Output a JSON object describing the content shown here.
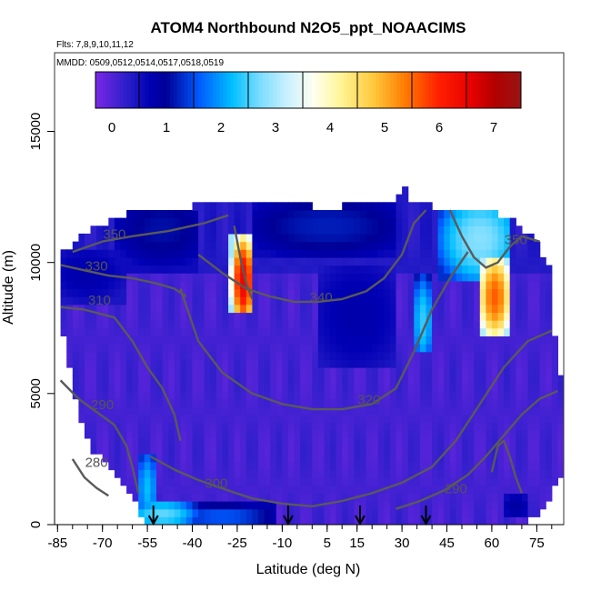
{
  "chart_data": {
    "type": "heatmap",
    "title": "ATOM4 Northbound N2O5_ppt_NOAACIMS",
    "flights_note": "Flts: 7,8,9,10,11,12",
    "dates_note": "MMDD: 0509,0512,0514,0517,0518,0519",
    "xlabel": "Latitude (deg N)",
    "ylabel": "Altitude (m)",
    "xlim": [
      -86,
      84
    ],
    "ylim": [
      0,
      18000
    ],
    "x_ticks": [
      -85,
      -70,
      -55,
      -40,
      -25,
      -10,
      5,
      15,
      30,
      45,
      60,
      75
    ],
    "x_tick_labels": [
      "-85",
      "-70",
      "-55",
      "-40",
      "-25",
      "-10",
      "5",
      "15",
      "30",
      "45",
      "60",
      "75"
    ],
    "y_ticks": [
      0,
      5000,
      10000,
      15000
    ],
    "y_tick_labels": [
      "0",
      "5000",
      "10000",
      "15000"
    ],
    "colorbar": {
      "range": [
        -0.3,
        7.5
      ],
      "ticks": [
        0,
        1,
        2,
        3,
        4,
        5,
        6,
        7
      ],
      "tick_labels": [
        "0",
        "1",
        "2",
        "3",
        "4",
        "5",
        "6",
        "7"
      ]
    },
    "ceiling_profile": [
      [
        -84,
        10200
      ],
      [
        -80,
        10500
      ],
      [
        -76,
        11000
      ],
      [
        -72,
        11200
      ],
      [
        -66,
        11600
      ],
      [
        -60,
        11800
      ],
      [
        -50,
        12000
      ],
      [
        -40,
        12000
      ],
      [
        -30,
        12200
      ],
      [
        -20,
        12300
      ],
      [
        -10,
        12200
      ],
      [
        0,
        12000
      ],
      [
        10,
        12000
      ],
      [
        20,
        12100
      ],
      [
        28,
        12200
      ],
      [
        30,
        12900
      ],
      [
        33,
        12200
      ],
      [
        40,
        12000
      ],
      [
        50,
        12000
      ],
      [
        60,
        11800
      ],
      [
        66,
        11600
      ],
      [
        72,
        11000
      ],
      [
        75,
        10600
      ],
      [
        79,
        9800
      ],
      [
        82,
        5500
      ]
    ],
    "floor_profile": [
      [
        -84,
        8000
      ],
      [
        -80,
        5500
      ],
      [
        -76,
        3500
      ],
      [
        -72,
        2800
      ],
      [
        -68,
        2400
      ],
      [
        -64,
        1700
      ],
      [
        -60,
        1200
      ],
      [
        -57,
        500
      ],
      [
        -55,
        0
      ],
      [
        70,
        0
      ],
      [
        74,
        400
      ],
      [
        78,
        800
      ],
      [
        81,
        1500
      ],
      [
        83,
        2000
      ]
    ],
    "background_value": 0.1,
    "hotspots": [
      {
        "x0": -27,
        "x1": -20,
        "y0": 8000,
        "y1": 11200,
        "peak_x": -23,
        "peak_y": 9300,
        "value": 6.5
      },
      {
        "x0": 56,
        "x1": 66,
        "y0": 7200,
        "y1": 10300,
        "peak_x": 61,
        "peak_y": 8700,
        "value": 5.6
      },
      {
        "x0": 42,
        "x1": 66,
        "y0": 9200,
        "y1": 12300,
        "peak_x": 56,
        "peak_y": 10900,
        "value": 2.8
      },
      {
        "x0": 34,
        "x1": 40,
        "y0": 6500,
        "y1": 9500,
        "peak_x": 37,
        "peak_y": 7800,
        "value": 2.4
      },
      {
        "x0": -58,
        "x1": -38,
        "y0": 0,
        "y1": 1000,
        "peak_x": -50,
        "peak_y": 400,
        "value": 2.6
      },
      {
        "x0": -58,
        "x1": -52,
        "y0": 0,
        "y1": 2600,
        "peak_x": -55,
        "peak_y": 1400,
        "value": 2.2
      },
      {
        "x0": -40,
        "x1": -12,
        "y0": 0,
        "y1": 800,
        "peak_x": -30,
        "peak_y": 300,
        "value": 1.6
      },
      {
        "x0": -66,
        "x1": -38,
        "y0": 9600,
        "y1": 12100,
        "peak_x": -50,
        "peak_y": 11300,
        "value": 1.1
      },
      {
        "x0": -20,
        "x1": 28,
        "y0": 10200,
        "y1": 12300,
        "peak_x": 5,
        "peak_y": 11400,
        "value": 1.2
      },
      {
        "x0": 2,
        "x1": 28,
        "y0": 6000,
        "y1": 9800,
        "peak_x": 15,
        "peak_y": 8000,
        "value": 0.8
      },
      {
        "x0": 64,
        "x1": 72,
        "y0": 300,
        "y1": 1200,
        "peak_x": 68,
        "peak_y": 700,
        "value": 0.9
      },
      {
        "x0": -84,
        "x1": -62,
        "y0": 8500,
        "y1": 10400,
        "peak_x": -75,
        "peak_y": 9600,
        "value": 0.8
      }
    ],
    "contours": [
      {
        "label": "350",
        "label_x": -66,
        "label_y": 10900,
        "points": [
          [
            -80,
            10400
          ],
          [
            -70,
            10800
          ],
          [
            -60,
            11000
          ],
          [
            -48,
            11200
          ],
          [
            -36,
            11500
          ],
          [
            -28,
            11800
          ]
        ]
      },
      {
        "label": "330",
        "label_x": -72,
        "label_y": 9700,
        "points": [
          [
            -84,
            9900
          ],
          [
            -76,
            9700
          ],
          [
            -68,
            9500
          ],
          [
            -60,
            9400
          ],
          [
            -52,
            9200
          ],
          [
            -46,
            9000
          ],
          [
            -42,
            8700
          ]
        ]
      },
      {
        "label": "310",
        "label_x": -71,
        "label_y": 8400,
        "points": [
          [
            -84,
            8300
          ],
          [
            -76,
            8200
          ],
          [
            -66,
            7900
          ],
          [
            -60,
            7000
          ],
          [
            -55,
            6000
          ],
          [
            -50,
            5200
          ],
          [
            -46,
            4200
          ],
          [
            -44,
            3200
          ]
        ]
      },
      {
        "label": "290",
        "label_x": -70,
        "label_y": 4400,
        "points": [
          [
            -84,
            5500
          ],
          [
            -78,
            4800
          ],
          [
            -72,
            4300
          ],
          [
            -66,
            3800
          ],
          [
            -62,
            3000
          ],
          [
            -60,
            2200
          ],
          [
            -58,
            1200
          ]
        ]
      },
      {
        "label": "280",
        "label_x": -72,
        "label_y": 2200,
        "points": [
          [
            -80,
            2500
          ],
          [
            -76,
            1800
          ],
          [
            -72,
            1400
          ],
          [
            -68,
            1100
          ]
        ]
      },
      {
        "label": "300",
        "label_x": -32,
        "label_y": 1400,
        "points": [
          [
            -54,
            2600
          ],
          [
            -46,
            2100
          ],
          [
            -38,
            1700
          ],
          [
            -28,
            1300
          ],
          [
            -20,
            1000
          ],
          [
            -10,
            800
          ],
          [
            0,
            700
          ],
          [
            10,
            900
          ],
          [
            20,
            1200
          ],
          [
            30,
            1600
          ],
          [
            40,
            2200
          ],
          [
            48,
            3200
          ],
          [
            56,
            4600
          ],
          [
            64,
            6000
          ],
          [
            72,
            7000
          ],
          [
            80,
            7400
          ]
        ]
      },
      {
        "label": "320",
        "label_x": 19,
        "label_y": 4600,
        "points": [
          [
            -44,
            9000
          ],
          [
            -38,
            7000
          ],
          [
            -30,
            5800
          ],
          [
            -20,
            5000
          ],
          [
            -10,
            4600
          ],
          [
            0,
            4400
          ],
          [
            10,
            4400
          ],
          [
            20,
            4600
          ],
          [
            28,
            5200
          ],
          [
            34,
            6600
          ],
          [
            40,
            8200
          ],
          [
            46,
            9400
          ],
          [
            52,
            10400
          ]
        ]
      },
      {
        "label": "340",
        "label_x": 3,
        "label_y": 8500,
        "points": [
          [
            -38,
            10300
          ],
          [
            -30,
            9600
          ],
          [
            -22,
            9000
          ],
          [
            -14,
            8700
          ],
          [
            -6,
            8500
          ],
          [
            2,
            8500
          ],
          [
            10,
            8600
          ],
          [
            18,
            8900
          ],
          [
            24,
            9400
          ],
          [
            30,
            10300
          ],
          [
            34,
            11500
          ],
          [
            38,
            12000
          ]
        ]
      },
      {
        "label": "290",
        "label_x": 48,
        "label_y": 1200,
        "points": [
          [
            28,
            600
          ],
          [
            36,
            900
          ],
          [
            44,
            1300
          ],
          [
            52,
            1900
          ],
          [
            58,
            2600
          ],
          [
            64,
            3400
          ],
          [
            70,
            4200
          ],
          [
            76,
            4800
          ],
          [
            82,
            5100
          ]
        ]
      },
      {
        "label": "350",
        "label_x": 68,
        "label_y": 10700,
        "points": [
          [
            46,
            12000
          ],
          [
            50,
            11000
          ],
          [
            54,
            10200
          ],
          [
            58,
            9800
          ],
          [
            62,
            10000
          ],
          [
            66,
            10600
          ],
          [
            70,
            11000
          ],
          [
            76,
            10800
          ]
        ]
      }
    ],
    "contours_grey_extra": [
      {
        "label": "",
        "points": [
          [
            60,
            2000
          ],
          [
            62,
            3000
          ],
          [
            64,
            3200
          ],
          [
            66,
            2600
          ],
          [
            68,
            1800
          ],
          [
            70,
            1200
          ]
        ]
      },
      {
        "label": "",
        "points": [
          [
            -26,
            11400
          ],
          [
            -24,
            10200
          ],
          [
            -22,
            9200
          ],
          [
            -20,
            8600
          ]
        ]
      }
    ],
    "arrows_x": [
      -53,
      -8,
      16,
      38
    ]
  }
}
